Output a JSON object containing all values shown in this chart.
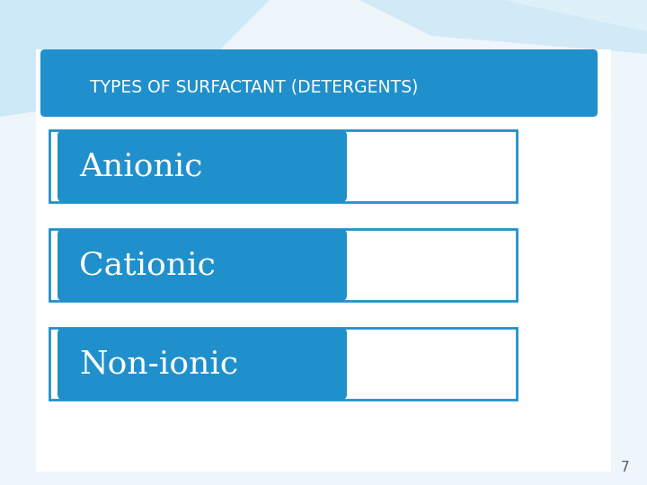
{
  "title": "TYPES OF SURFACTANT (DETERGENTS)",
  "title_bg_color": "#2090CC",
  "title_text_color": "#FFFFFF",
  "slide_bg_color": "#FFFFFF",
  "items": [
    "Anionic",
    "Cationic",
    "Non-ionic"
  ],
  "item_bg_color": "#2090CC",
  "item_text_color": "#FFFFFF",
  "outer_box_edge_color": "#2090CC",
  "page_number": "7",
  "accent_color1": "#B0DCF0",
  "accent_color2": "#D8EEF8"
}
